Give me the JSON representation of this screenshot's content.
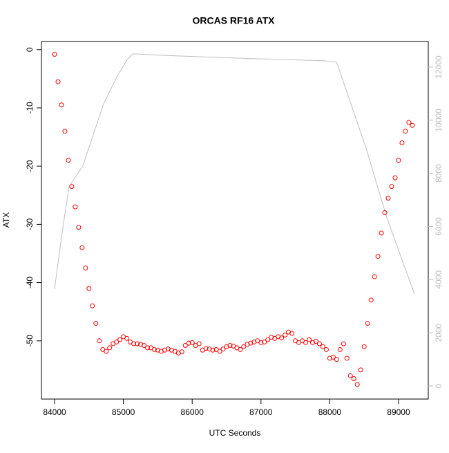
{
  "chart_data": {
    "type": "scatter",
    "title": "ORCAS RF16 ATX",
    "x_label": "UTC Seconds",
    "y_label": "ATX",
    "xlim": [
      83809,
      89432
    ],
    "xticks": [
      84000,
      85000,
      86000,
      87000,
      88000,
      89000
    ],
    "ylim": [
      -60,
      1.4
    ],
    "yticks": [
      0,
      -10,
      -20,
      -30,
      -40,
      -50
    ],
    "y2lim": [
      -495,
      12963
    ],
    "y2ticks": [
      0,
      2000,
      4000,
      6000,
      8000,
      10000,
      12000
    ],
    "y2color": "#bebebe",
    "series": [
      {
        "type": "scatter",
        "color": "#ff0000",
        "x": [
          84000,
          84050,
          84100,
          84150,
          84200,
          84250,
          84300,
          84350,
          84400,
          84450,
          84500,
          84550,
          84600,
          84650,
          84700,
          84750,
          84800,
          84850,
          84900,
          84950,
          85000,
          85050,
          85100,
          85150,
          85200,
          85250,
          85300,
          85350,
          85400,
          85450,
          85500,
          85550,
          85600,
          85650,
          85700,
          85750,
          85800,
          85850,
          85900,
          85950,
          86000,
          86050,
          86100,
          86150,
          86200,
          86250,
          86300,
          86350,
          86400,
          86450,
          86500,
          86550,
          86600,
          86650,
          86700,
          86750,
          86800,
          86850,
          86900,
          86950,
          87000,
          87050,
          87100,
          87150,
          87200,
          87250,
          87300,
          87350,
          87400,
          87450,
          87500,
          87550,
          87600,
          87650,
          87700,
          87750,
          87800,
          87850,
          87900,
          87950,
          88000,
          88050,
          88100,
          88150,
          88200,
          88250,
          88300,
          88350,
          88400,
          88450,
          88500,
          88550,
          88600,
          88650,
          88700,
          88750,
          88800,
          88850,
          88900,
          88950,
          89000,
          89050,
          89100,
          89150,
          89200
        ],
        "values": [
          -0.8,
          -5.5,
          -9.5,
          -14,
          -19,
          -23.5,
          -27,
          -30.5,
          -34,
          -37.5,
          -41,
          -44,
          -47,
          -50,
          -51.5,
          -51.8,
          -51.2,
          -50.5,
          -50.2,
          -49.8,
          -49.3,
          -49.6,
          -50.2,
          -50.5,
          -50.5,
          -50.6,
          -50.8,
          -51.2,
          -51.2,
          -51.5,
          -51.6,
          -51.8,
          -51.6,
          -51.4,
          -51.6,
          -51.8,
          -52.1,
          -51.9,
          -50.8,
          -50.4,
          -50.3,
          -50.8,
          -50.5,
          -51.6,
          -51.3,
          -51.4,
          -51.6,
          -51.5,
          -51.8,
          -51.4,
          -51,
          -50.8,
          -50.9,
          -51.2,
          -51.5,
          -51,
          -50.6,
          -50.4,
          -50.2,
          -50,
          -50.3,
          -50.2,
          -49.8,
          -49.4,
          -49.6,
          -49.3,
          -49.5,
          -49,
          -48.5,
          -48.7,
          -50,
          -50.3,
          -50,
          -50.3,
          -49.8,
          -50.3,
          -50.1,
          -50.5,
          -51,
          -51.5,
          -53,
          -52.8,
          -53.2,
          -51.5,
          -50.5,
          -53,
          -56,
          -56.5,
          -57.5,
          -55,
          -51,
          -47,
          -43,
          -39,
          -35.5,
          -31.5,
          -28,
          -25.5,
          -23.5,
          -22,
          -19,
          -16,
          -14,
          -12.5,
          -13
        ]
      },
      {
        "type": "line",
        "color": "#bebebe",
        "axis": "y2",
        "x": [
          84000,
          84100,
          84210,
          84410,
          84710,
          84910,
          85060,
          85140,
          85500,
          86000,
          86500,
          87000,
          87500,
          87920,
          88000,
          88100,
          88530,
          88830,
          89230
        ],
        "values": [
          3646,
          5600,
          7500,
          8280,
          10600,
          11660,
          12300,
          12500,
          12450,
          12400,
          12350,
          12310,
          12270,
          12240,
          12200,
          12190,
          8930,
          6330,
          3460
        ]
      }
    ]
  }
}
